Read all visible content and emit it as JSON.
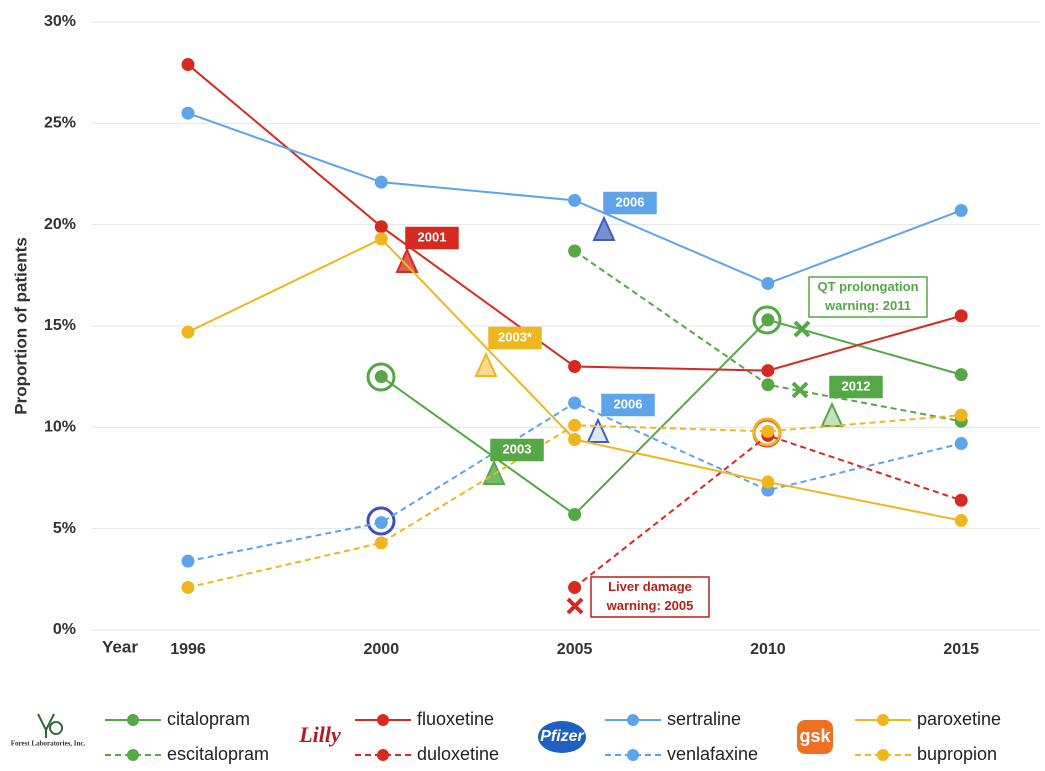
{
  "chart_data": {
    "type": "line",
    "y_label": "Proportion of patients",
    "x_label": "Year",
    "categories": [
      "1996",
      "2000",
      "2005",
      "2010",
      "2015"
    ],
    "ylim": [
      0,
      30
    ],
    "yticks": [
      {
        "value": 0,
        "label": "0%"
      },
      {
        "value": 5,
        "label": "5%"
      },
      {
        "value": 10,
        "label": "10%"
      },
      {
        "value": 15,
        "label": "15%"
      },
      {
        "value": 20,
        "label": "20%"
      },
      {
        "value": 25,
        "label": "25%"
      },
      {
        "value": 30,
        "label": "30%"
      }
    ],
    "grid": true,
    "legend": "bottom",
    "series": [
      {
        "name": "citalopram",
        "color": "#55a845",
        "dashed": false,
        "values": [
          null,
          12.5,
          5.7,
          15.3,
          12.6
        ]
      },
      {
        "name": "escitalopram",
        "color": "#55a845",
        "dashed": true,
        "values": [
          null,
          null,
          18.7,
          12.1,
          10.3
        ]
      },
      {
        "name": "fluoxetine",
        "color": "#d42a20",
        "dashed": false,
        "values": [
          27.9,
          19.9,
          13.0,
          12.8,
          15.5
        ]
      },
      {
        "name": "duloxetine",
        "color": "#d42a20",
        "dashed": true,
        "values": [
          null,
          null,
          2.1,
          9.6,
          6.4
        ]
      },
      {
        "name": "sertraline",
        "color": "#5ea4ea",
        "dashed": false,
        "values": [
          25.5,
          22.1,
          21.2,
          17.1,
          20.7
        ]
      },
      {
        "name": "venlafaxine",
        "color": "#5ea4ea",
        "dashed": true,
        "values": [
          3.4,
          5.3,
          11.2,
          6.9,
          9.2
        ]
      },
      {
        "name": "paroxetine",
        "color": "#f0b61e",
        "dashed": false,
        "values": [
          14.7,
          19.3,
          9.4,
          7.3,
          5.4
        ]
      },
      {
        "name": "bupropion",
        "color": "#f0b61e",
        "dashed": true,
        "values": [
          2.1,
          4.3,
          10.1,
          9.8,
          10.6
        ]
      }
    ],
    "annotations": [
      {
        "lines": [
          "2001"
        ],
        "color": "#d42a20",
        "style": "filled"
      },
      {
        "lines": [
          "2003*"
        ],
        "color": "#f0b61e",
        "style": "filled"
      },
      {
        "lines": [
          "2006"
        ],
        "color": "#5ea4ea",
        "style": "filled"
      },
      {
        "lines": [
          "2006"
        ],
        "color": "#5ea4ea",
        "style": "filled"
      },
      {
        "lines": [
          "2003"
        ],
        "color": "#55a845",
        "style": "filled"
      },
      {
        "lines": [
          "2012"
        ],
        "color": "#55a845",
        "style": "filled"
      },
      {
        "lines": [
          "QT prolongation",
          "warning: 2011"
        ],
        "color": "#55a845",
        "style": "outline"
      },
      {
        "lines": [
          "Liver damage",
          "warning: 2005"
        ],
        "color": "#b8201a",
        "style": "outline"
      }
    ],
    "logos": [
      "Forest Laboratories, Inc.",
      "Lilly",
      "Pfizer",
      "gsk"
    ]
  }
}
